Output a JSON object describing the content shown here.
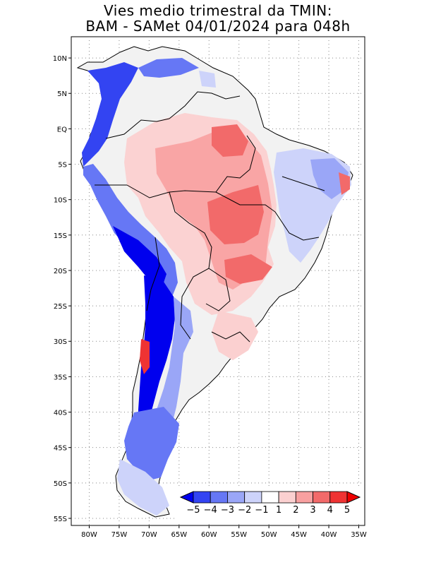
{
  "title": {
    "line1": "Vies medio trimestral da TMIN:",
    "line2": "BAM - SAMet 04/01/2024  para 048h"
  },
  "map": {
    "lon_range": [
      -83,
      -34
    ],
    "lat_range": [
      -56,
      13
    ],
    "grid": "dotted",
    "lat_ticks": [
      "10N",
      "5N",
      "EQ",
      "5S",
      "10S",
      "15S",
      "20S",
      "25S",
      "30S",
      "35S",
      "40S",
      "45S",
      "50S",
      "55S"
    ],
    "lon_ticks": [
      "80W",
      "75W",
      "70W",
      "65W",
      "60W",
      "55W",
      "50W",
      "45W",
      "40W",
      "35W"
    ]
  },
  "colorbar": {
    "labels": [
      "-5",
      "-4",
      "-3",
      "-2",
      "-1",
      "1",
      "2",
      "3",
      "4",
      "5"
    ],
    "colors": [
      "#0000ee",
      "#3344f2",
      "#6677f5",
      "#9aa6f7",
      "#cdd3fa",
      "#ffffff",
      "#fbd0d0",
      "#f8a0a0",
      "#f26a6a",
      "#ef3333",
      "#ee0000"
    ]
  }
}
